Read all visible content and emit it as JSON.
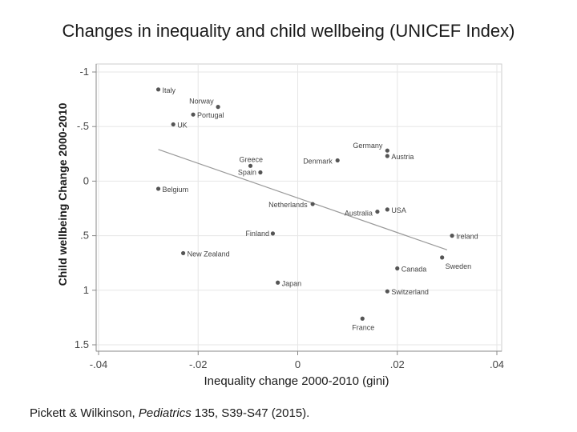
{
  "chart_data": {
    "type": "scatter",
    "title": "Changes in inequality and child wellbeing (UNICEF Index)",
    "xlabel": "Inequality change 2000-2010 (gini)",
    "ylabel": "Child wellbeing Change 2000-2010",
    "xlim": [
      -0.04,
      0.04
    ],
    "ylim": [
      -1,
      1.5
    ],
    "y_reversed": true,
    "x_ticks": [
      -0.04,
      -0.02,
      0,
      0.02,
      0.04
    ],
    "x_tick_labels": [
      "-.04",
      "-.02",
      "0",
      ".02",
      ".04"
    ],
    "y_ticks": [
      -1,
      -0.5,
      0,
      0.5,
      1,
      1.5
    ],
    "y_tick_labels": [
      "-1",
      "-.5",
      "0",
      ".5",
      "1",
      "1.5"
    ],
    "grid": true,
    "points": [
      {
        "label": "Italy",
        "x": -0.028,
        "y": -0.84
      },
      {
        "label": "Norway",
        "x": -0.016,
        "y": -0.68
      },
      {
        "label": "Portugal",
        "x": -0.021,
        "y": -0.61
      },
      {
        "label": "UK",
        "x": -0.025,
        "y": -0.52
      },
      {
        "label": "Germany",
        "x": 0.018,
        "y": -0.28
      },
      {
        "label": "Austria",
        "x": 0.018,
        "y": -0.23
      },
      {
        "label": "Denmark",
        "x": 0.008,
        "y": -0.19
      },
      {
        "label": "Greece",
        "x": -0.0095,
        "y": -0.14
      },
      {
        "label": "Spain",
        "x": -0.0075,
        "y": -0.08
      },
      {
        "label": "Belgium",
        "x": -0.028,
        "y": 0.07
      },
      {
        "label": "Netherlands",
        "x": 0.003,
        "y": 0.21
      },
      {
        "label": "Australia",
        "x": 0.016,
        "y": 0.28
      },
      {
        "label": "USA",
        "x": 0.018,
        "y": 0.26
      },
      {
        "label": "Finland",
        "x": -0.005,
        "y": 0.48
      },
      {
        "label": "Ireland",
        "x": 0.031,
        "y": 0.5
      },
      {
        "label": "New Zealand",
        "x": -0.023,
        "y": 0.66
      },
      {
        "label": "Sweden",
        "x": 0.029,
        "y": 0.7
      },
      {
        "label": "Canada",
        "x": 0.02,
        "y": 0.8
      },
      {
        "label": "Japan",
        "x": -0.004,
        "y": 0.93
      },
      {
        "label": "Switzerland",
        "x": 0.018,
        "y": 1.01
      },
      {
        "label": "France",
        "x": 0.013,
        "y": 1.26
      }
    ],
    "fit_line": {
      "x": [
        -0.028,
        0.03
      ],
      "y": [
        -0.29,
        0.63
      ]
    }
  },
  "citation": {
    "authors": "Pickett & Wilkinson, ",
    "journal": "Pediatrics",
    "reference": " 135, S39-S47 (2015)."
  }
}
